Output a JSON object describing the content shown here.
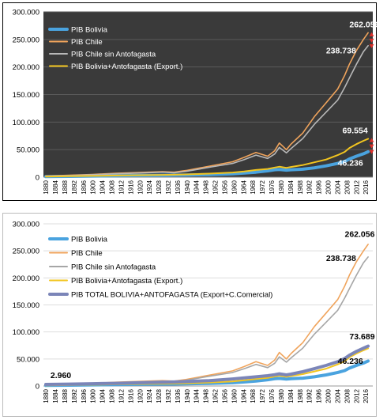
{
  "chart_data": [
    {
      "type": "line",
      "background": "#3a3a3a",
      "frame": "#000000",
      "grid": true,
      "legend_position": "top-left",
      "ylim": [
        0,
        300000
      ],
      "yticks": [
        "0",
        "50.000",
        "100.000",
        "150.000",
        "200.000",
        "250.000",
        "300.000"
      ],
      "xticks": [
        "1880",
        "1884",
        "1888",
        "1892",
        "1896",
        "1900",
        "1904",
        "1908",
        "1912",
        "1916",
        "1920",
        "1924",
        "1928",
        "1932",
        "1936",
        "1940",
        "1944",
        "1948",
        "1952",
        "1956",
        "1960",
        "1964",
        "1968",
        "1972",
        "1976",
        "1980",
        "1984",
        "1988",
        "1992",
        "1996",
        "2000",
        "2004",
        "2008",
        "2012",
        "2016"
      ],
      "x": [
        1880,
        1890,
        1900,
        1910,
        1920,
        1930,
        1935,
        1940,
        1950,
        1960,
        1965,
        1970,
        1975,
        1978,
        1980,
        1983,
        1985,
        1990,
        1995,
        2000,
        2005,
        2008,
        2010,
        2013,
        2016,
        2018
      ],
      "series": [
        {
          "name": "PIB Bolivia",
          "color": "#4aa3df",
          "width": 4,
          "values": [
            1000,
            1500,
            2000,
            2500,
            3000,
            3500,
            3700,
            4000,
            4800,
            6000,
            7500,
            9000,
            11500,
            13500,
            14000,
            12800,
            13500,
            14500,
            17000,
            20500,
            25000,
            28500,
            33000,
            38000,
            42500,
            46236
          ]
        },
        {
          "name": "PIB Chile",
          "color": "#f0a45c",
          "width": 1.6,
          "values": [
            2000,
            3500,
            5000,
            7000,
            8500,
            10000,
            9000,
            12000,
            20000,
            28000,
            36000,
            45000,
            38000,
            48000,
            62000,
            50000,
            60000,
            80000,
            110000,
            135000,
            160000,
            185000,
            205000,
            230000,
            250000,
            262056
          ]
        },
        {
          "name": "PIB Chile sin Antofagasta",
          "color": "#b8b8b8",
          "width": 1.6,
          "values": [
            1800,
            3000,
            4500,
            6200,
            7500,
            9000,
            8000,
            10500,
            18000,
            25000,
            32000,
            40000,
            34000,
            42000,
            54000,
            44000,
            52000,
            70000,
            96000,
            118000,
            140000,
            163000,
            180000,
            205000,
            228000,
            238738
          ]
        },
        {
          "name": "PIB Bolivia+Antofagasta (Export.)",
          "color": "#f2c51f",
          "width": 2,
          "values": [
            1100,
            1700,
            2300,
            3000,
            3600,
            4200,
            4500,
            5000,
            6500,
            8500,
            10500,
            13000,
            15000,
            17500,
            19000,
            17000,
            18500,
            22000,
            27000,
            32000,
            40000,
            46000,
            53000,
            60000,
            66000,
            69554
          ]
        }
      ],
      "annotations": [
        {
          "text": "262.056",
          "x": 2010,
          "y": 272000
        },
        {
          "text": "238.738",
          "x": 2000,
          "y": 225000
        },
        {
          "text": "69.554",
          "x": 2007,
          "y": 80000
        },
        {
          "text": "46.236",
          "x": 2005,
          "y": 21000
        }
      ],
      "markers": {
        "color": "#e0302a",
        "items": [
          {
            "x": 2019.5,
            "y": 250000
          },
          {
            "x": 2019.5,
            "y": 58000
          }
        ]
      }
    },
    {
      "type": "line",
      "background": "#ffffff",
      "frame": "#bbbbbb",
      "grid": true,
      "legend_position": "top-left",
      "ylim": [
        0,
        300000
      ],
      "yticks": [
        "0",
        "50.000",
        "100.000",
        "150.000",
        "200.000",
        "250.000",
        "300.000"
      ],
      "xticks": [
        "1880",
        "1884",
        "1888",
        "1892",
        "1896",
        "1900",
        "1904",
        "1908",
        "1912",
        "1916",
        "1920",
        "1924",
        "1928",
        "1932",
        "1936",
        "1940",
        "1944",
        "1948",
        "1952",
        "1956",
        "1960",
        "1964",
        "1968",
        "1972",
        "1976",
        "1980",
        "1984",
        "1988",
        "1992",
        "1996",
        "2000",
        "2004",
        "2008",
        "2012",
        "2016"
      ],
      "x": [
        1880,
        1890,
        1900,
        1910,
        1920,
        1930,
        1935,
        1940,
        1950,
        1960,
        1965,
        1970,
        1975,
        1978,
        1980,
        1983,
        1985,
        1990,
        1995,
        2000,
        2005,
        2008,
        2010,
        2013,
        2016,
        2018
      ],
      "series": [
        {
          "name": "PIB Bolivia",
          "color": "#4aa3df",
          "width": 4,
          "values": [
            1000,
            1500,
            2000,
            2500,
            3000,
            3500,
            3700,
            4000,
            4800,
            6000,
            7500,
            9000,
            11500,
            13500,
            14000,
            12800,
            13500,
            14500,
            17000,
            20500,
            25000,
            28500,
            33000,
            38000,
            42500,
            46236
          ]
        },
        {
          "name": "PIB Chile",
          "color": "#f0a45c",
          "width": 1.6,
          "values": [
            2000,
            3500,
            5000,
            7000,
            8500,
            10000,
            9000,
            12000,
            20000,
            28000,
            36000,
            45000,
            38000,
            48000,
            62000,
            50000,
            60000,
            80000,
            110000,
            135000,
            160000,
            185000,
            205000,
            230000,
            250000,
            262056
          ]
        },
        {
          "name": "PIB Chile sin Antofagasta",
          "color": "#a6a6a6",
          "width": 1.6,
          "values": [
            1800,
            3000,
            4500,
            6200,
            7500,
            9000,
            8000,
            10500,
            18000,
            25000,
            32000,
            40000,
            34000,
            42000,
            54000,
            44000,
            52000,
            70000,
            96000,
            118000,
            140000,
            163000,
            180000,
            205000,
            228000,
            238738
          ]
        },
        {
          "name": "PIB Bolivia+Antofagasta (Export.)",
          "color": "#f2c51f",
          "width": 2,
          "values": [
            1100,
            1700,
            2300,
            3000,
            3600,
            4200,
            4500,
            5000,
            6500,
            8500,
            10500,
            13000,
            15000,
            17500,
            19000,
            17000,
            18500,
            22000,
            27000,
            32000,
            40000,
            46000,
            53000,
            60000,
            66000,
            69554
          ]
        },
        {
          "name": "PIB TOTAL BOLIVIA+ANTOFAGASTA (Export+C.Comercial)",
          "color": "#7b85b8",
          "width": 4,
          "values": [
            2960,
            3500,
            4200,
            5000,
            6000,
            7000,
            7500,
            8200,
            10000,
            13000,
            15000,
            17000,
            19000,
            21000,
            22500,
            20500,
            22000,
            26500,
            32000,
            38000,
            45000,
            51000,
            57000,
            64000,
            70000,
            73689
          ]
        }
      ],
      "annotations": [
        {
          "text": "262.056",
          "x": 2008,
          "y": 276000
        },
        {
          "text": "238.738",
          "x": 2000,
          "y": 231000
        },
        {
          "text": "73.689",
          "x": 2010,
          "y": 86000
        },
        {
          "text": "46.236",
          "x": 2005,
          "y": 41000
        },
        {
          "text": "2.960",
          "x": 1882,
          "y": 15000
        }
      ]
    }
  ]
}
